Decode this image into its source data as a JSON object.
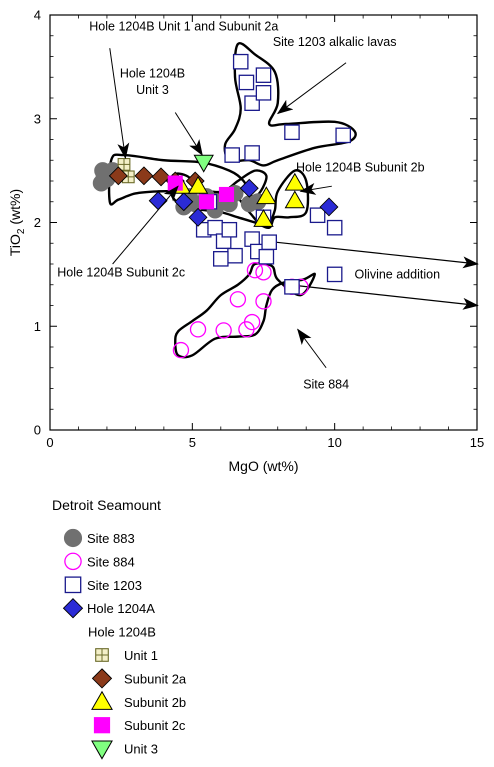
{
  "chart_data": {
    "type": "scatter",
    "xlabel": "MgO (wt%)",
    "ylabel": "TiO2 (wt%)",
    "ylabel_main": "TiO",
    "ylabel_sub": "2",
    "ylabel_tail": " (wt%)",
    "xlim": [
      0,
      15
    ],
    "ylim": [
      0,
      4
    ],
    "xticks": [
      0,
      5,
      10,
      15
    ],
    "yticks": [
      0,
      1,
      2,
      3,
      4
    ],
    "grid": false,
    "legend_title": "Detroit Seamount",
    "legend_subtitle": "Hole 1204B",
    "colors": {
      "site883": "#707070",
      "site884": "#ff00ff",
      "site1203": "#1a1a8c",
      "hole1204A": "#2b2bd6",
      "unit1": "#6b6b2a",
      "subunit2a": "#8b3a1a",
      "subunit2b": "#ffff00",
      "subunit2c": "#ff00ff",
      "unit3": "#80ff80"
    },
    "series": [
      {
        "key": "site883",
        "name": "Site 883",
        "marker": "circle-filled",
        "points": [
          [
            1.8,
            2.38
          ],
          [
            1.9,
            2.45
          ],
          [
            2.0,
            2.42
          ],
          [
            2.2,
            2.5
          ],
          [
            1.85,
            2.5
          ],
          [
            4.7,
            2.15
          ],
          [
            4.9,
            2.25
          ],
          [
            5.1,
            2.18
          ],
          [
            5.5,
            2.25
          ],
          [
            5.8,
            2.12
          ],
          [
            6.0,
            2.2
          ],
          [
            6.3,
            2.18
          ],
          [
            6.5,
            2.28
          ],
          [
            7.0,
            2.18
          ],
          [
            7.3,
            2.2
          ]
        ]
      },
      {
        "key": "site884",
        "name": "Site 884",
        "marker": "circle-open",
        "points": [
          [
            4.6,
            0.77
          ],
          [
            5.2,
            0.97
          ],
          [
            6.1,
            0.96
          ],
          [
            6.6,
            1.26
          ],
          [
            7.1,
            1.04
          ],
          [
            6.9,
            0.97
          ],
          [
            7.2,
            1.54
          ],
          [
            7.5,
            1.52
          ],
          [
            7.5,
            1.24
          ],
          [
            8.5,
            1.38
          ],
          [
            8.8,
            1.38
          ]
        ]
      },
      {
        "key": "site1203",
        "name": "Site 1203",
        "marker": "square-open",
        "points": [
          [
            6.7,
            3.55
          ],
          [
            6.9,
            3.35
          ],
          [
            7.1,
            3.15
          ],
          [
            7.5,
            3.25
          ],
          [
            7.5,
            3.42
          ],
          [
            8.5,
            2.87
          ],
          [
            10.3,
            2.84
          ],
          [
            6.4,
            2.65
          ],
          [
            7.1,
            2.67
          ],
          [
            5.4,
            1.93
          ],
          [
            5.8,
            1.95
          ],
          [
            6.1,
            1.82
          ],
          [
            6.3,
            1.93
          ],
          [
            6.5,
            1.68
          ],
          [
            6.0,
            1.65
          ],
          [
            7.1,
            1.84
          ],
          [
            7.3,
            1.72
          ],
          [
            7.6,
            1.67
          ],
          [
            7.7,
            1.81
          ],
          [
            8.5,
            1.38
          ],
          [
            9.4,
            2.07
          ],
          [
            10.0,
            1.95
          ],
          [
            10.0,
            1.5
          ],
          [
            7.5,
            2.05
          ],
          [
            5.6,
            2.2
          ]
        ]
      },
      {
        "key": "hole1204A",
        "name": "Hole 1204A",
        "marker": "diamond",
        "points": [
          [
            3.8,
            2.21
          ],
          [
            4.7,
            2.2
          ],
          [
            5.2,
            2.05
          ],
          [
            7.0,
            2.33
          ],
          [
            9.8,
            2.15
          ]
        ]
      },
      {
        "key": "unit1",
        "name": "Unit 1",
        "marker": "square-cross",
        "points": [
          [
            2.6,
            2.56
          ],
          [
            2.75,
            2.44
          ]
        ]
      },
      {
        "key": "subunit2a",
        "name": "Subunit 2a",
        "marker": "diamond",
        "points": [
          [
            2.4,
            2.45
          ],
          [
            3.3,
            2.45
          ],
          [
            3.9,
            2.44
          ],
          [
            4.4,
            2.4
          ],
          [
            5.1,
            2.4
          ]
        ]
      },
      {
        "key": "subunit2b",
        "name": "Subunit 2b",
        "marker": "triangle-up",
        "points": [
          [
            4.6,
            2.35
          ],
          [
            5.2,
            2.35
          ],
          [
            7.6,
            2.25
          ],
          [
            8.6,
            2.38
          ],
          [
            8.6,
            2.21
          ],
          [
            7.5,
            2.03
          ]
        ]
      },
      {
        "key": "subunit2c",
        "name": "Subunit 2c",
        "marker": "square-filled",
        "points": [
          [
            4.4,
            2.38
          ],
          [
            5.5,
            2.2
          ],
          [
            6.2,
            2.27
          ]
        ]
      },
      {
        "key": "unit3",
        "name": "Unit 3",
        "marker": "triangle-down",
        "points": [
          [
            5.4,
            2.58
          ]
        ]
      }
    ],
    "outlines": [
      {
        "name": "hole1204b-unit1-subunit2a",
        "points": [
          [
            2.1,
            2.2
          ],
          [
            2.15,
            2.6
          ],
          [
            2.6,
            2.65
          ],
          [
            4.0,
            2.6
          ],
          [
            5.3,
            2.58
          ],
          [
            6.3,
            2.5
          ],
          [
            6.8,
            2.4
          ],
          [
            7.1,
            2.25
          ],
          [
            7.4,
            2.3
          ],
          [
            7.6,
            2.45
          ],
          [
            7.2,
            2.5
          ],
          [
            6.6,
            2.4
          ],
          [
            6.1,
            2.3
          ],
          [
            5.5,
            2.3
          ],
          [
            4.6,
            2.3
          ],
          [
            3.8,
            2.3
          ],
          [
            3.0,
            2.28
          ],
          [
            2.4,
            2.22
          ]
        ]
      },
      {
        "name": "site1203-alkalic",
        "points": [
          [
            6.6,
            3.72
          ],
          [
            7.2,
            3.62
          ],
          [
            7.9,
            3.45
          ],
          [
            8.0,
            3.15
          ],
          [
            7.7,
            2.95
          ],
          [
            8.3,
            2.95
          ],
          [
            10.0,
            2.97
          ],
          [
            10.7,
            2.88
          ],
          [
            10.5,
            2.78
          ],
          [
            9.3,
            2.72
          ],
          [
            8.0,
            2.6
          ],
          [
            7.5,
            2.55
          ],
          [
            7.0,
            2.6
          ],
          [
            6.3,
            2.6
          ],
          [
            6.15,
            2.75
          ],
          [
            6.5,
            2.9
          ],
          [
            6.7,
            3.1
          ],
          [
            6.5,
            3.4
          ]
        ]
      },
      {
        "name": "hole1204b-subunit2b",
        "points": [
          [
            4.3,
            2.45
          ],
          [
            4.8,
            2.45
          ],
          [
            5.5,
            2.3
          ],
          [
            6.4,
            2.28
          ],
          [
            7.0,
            2.1
          ],
          [
            7.4,
            1.98
          ],
          [
            7.7,
            2.0
          ],
          [
            7.9,
            2.12
          ],
          [
            8.0,
            2.3
          ],
          [
            8.6,
            2.5
          ],
          [
            9.0,
            2.4
          ],
          [
            9.0,
            2.1
          ],
          [
            8.4,
            2.05
          ],
          [
            7.9,
            2.05
          ],
          [
            7.7,
            1.95
          ],
          [
            7.2,
            2.0
          ],
          [
            6.6,
            2.05
          ],
          [
            6.0,
            2.1
          ],
          [
            5.4,
            2.12
          ],
          [
            4.8,
            2.15
          ],
          [
            4.3,
            2.25
          ]
        ]
      },
      {
        "name": "site884",
        "points": [
          [
            4.5,
            0.72
          ],
          [
            4.4,
            0.85
          ],
          [
            4.5,
            0.95
          ],
          [
            5.0,
            1.05
          ],
          [
            5.5,
            1.15
          ],
          [
            6.0,
            1.3
          ],
          [
            6.6,
            1.4
          ],
          [
            7.0,
            1.5
          ],
          [
            7.2,
            1.6
          ],
          [
            7.8,
            1.58
          ],
          [
            8.0,
            1.45
          ],
          [
            8.8,
            1.3
          ],
          [
            9.3,
            1.5
          ],
          [
            8.9,
            1.45
          ],
          [
            8.2,
            1.42
          ],
          [
            7.8,
            1.35
          ],
          [
            7.6,
            1.2
          ],
          [
            7.5,
            1.05
          ],
          [
            7.2,
            0.92
          ],
          [
            6.6,
            0.9
          ],
          [
            5.8,
            0.88
          ],
          [
            5.0,
            0.72
          ]
        ]
      }
    ],
    "vectors": [
      {
        "from": [
          7.6,
          1.82
        ],
        "to": [
          15.1,
          1.6
        ]
      },
      {
        "from": [
          8.4,
          1.4
        ],
        "to": [
          15.1,
          1.2
        ]
      }
    ],
    "annotations": [
      {
        "key": "a1",
        "text": "Hole 1204B Unit 1 and Subunit 2a",
        "anchor": "middle",
        "text_at": [
          4.7,
          3.85
        ],
        "line": [
          [
            2.1,
            3.68
          ],
          [
            2.65,
            2.62
          ]
        ],
        "arrow": true
      },
      {
        "key": "a2",
        "text": "Hole 1204B",
        "anchor": "middle",
        "text_at": [
          3.6,
          3.4
        ],
        "line": null,
        "arrow": false
      },
      {
        "key": "a3",
        "text": "Unit 3",
        "anchor": "middle",
        "text_at": [
          3.6,
          3.24
        ],
        "line": [
          [
            4.4,
            3.06
          ],
          [
            5.35,
            2.65
          ]
        ],
        "arrow": true
      },
      {
        "key": "a4",
        "text": "Site 1203 alkalic lavas",
        "anchor": "middle",
        "text_at": [
          10.0,
          3.7
        ],
        "line": [
          [
            10.4,
            3.54
          ],
          [
            8.0,
            3.05
          ]
        ],
        "arrow": true
      },
      {
        "key": "a5",
        "text": "Hole 1204B Subunit 2b",
        "anchor": "middle",
        "text_at": [
          10.9,
          2.49
        ],
        "line": [
          [
            9.9,
            2.35
          ],
          [
            8.8,
            2.3
          ]
        ],
        "arrow": true
      },
      {
        "key": "a6",
        "text": "Hole 1204B Subunit 2c",
        "anchor": "middle",
        "text_at": [
          2.5,
          1.48
        ],
        "line": [
          [
            2.2,
            1.6
          ],
          [
            4.5,
            2.35
          ]
        ],
        "arrow": true
      },
      {
        "key": "a7",
        "text": "Olivine addition",
        "anchor": "middle",
        "text_at": [
          12.2,
          1.46
        ],
        "line": null,
        "arrow": false
      },
      {
        "key": "a8",
        "text": "Site 884",
        "anchor": "middle",
        "text_at": [
          9.7,
          0.4
        ],
        "line": [
          [
            9.7,
            0.6
          ],
          [
            8.7,
            0.97
          ]
        ],
        "arrow": true
      }
    ],
    "legend": [
      {
        "key": "site883",
        "label": "Site 883",
        "indent": 0
      },
      {
        "key": "site884",
        "label": "Site 884",
        "indent": 0
      },
      {
        "key": "site1203",
        "label": "Site 1203",
        "indent": 0
      },
      {
        "key": "hole1204A",
        "label": "Hole 1204A",
        "indent": 0
      },
      {
        "key": "hole1204B",
        "label": "Hole 1204B",
        "indent": 0,
        "header": true
      },
      {
        "key": "unit1",
        "label": "Unit 1",
        "indent": 1
      },
      {
        "key": "subunit2a",
        "label": "Subunit 2a",
        "indent": 1
      },
      {
        "key": "subunit2b",
        "label": "Subunit 2b",
        "indent": 1
      },
      {
        "key": "subunit2c",
        "label": "Subunit 2c",
        "indent": 1
      },
      {
        "key": "unit3",
        "label": "Unit 3",
        "indent": 1
      }
    ]
  }
}
